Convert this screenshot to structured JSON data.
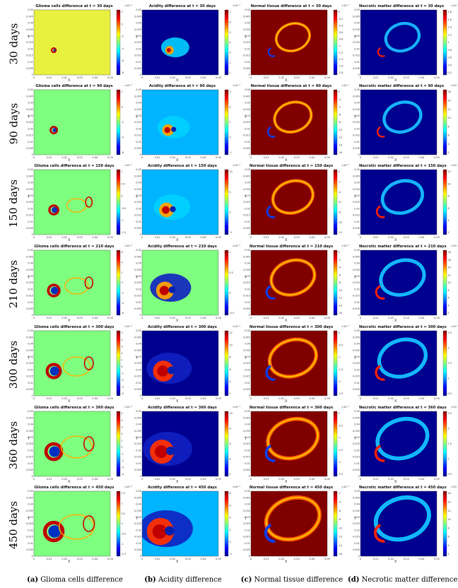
{
  "rows": [
    "30 days",
    "90 days",
    "150 days",
    "210 days",
    "300 days",
    "360 days",
    "450 days"
  ],
  "columns": [
    {
      "key": "glioma",
      "caption_tag": "(a)",
      "caption": "Glioma cells difference",
      "title_prefix": "Glioma cells difference at t = "
    },
    {
      "key": "acidity",
      "caption_tag": "(b)",
      "caption": "Acidity difference",
      "title_prefix": "Acidity difference at t = "
    },
    {
      "key": "normal",
      "caption_tag": "(c)",
      "caption": "Normal tissue difference",
      "title_prefix": "Normal tissue difference at t = "
    },
    {
      "key": "necrotic",
      "caption_tag": "(d)",
      "caption": "Necrotic matter difference",
      "title_prefix": "Necrotic matter difference at t = "
    }
  ],
  "chart_data": {
    "type": "heatmap",
    "grid": "4 columns x 7 rows of heatmap panels",
    "xlabel": "X",
    "ylabel": "Y",
    "xlim": [
      0,
      0.05
    ],
    "ylim": [
      0,
      0.05
    ],
    "x_ticks": [
      "0",
      "0.01",
      "0.02",
      "0.03",
      "0.04",
      "0.05"
    ],
    "y_ticks": [
      "0",
      "0.005",
      "0.01",
      "0.015",
      "0.02",
      "0.025",
      "0.03",
      "0.035",
      "0.04",
      "0.045",
      "0.05"
    ],
    "colormap": "jet",
    "colorbar_scale_label": "×10⁻³",
    "colors": {
      "low": "#00008f",
      "mid_low": "#00b4ff",
      "mid": "#7fff7f",
      "mid_high": "#ffd000",
      "high": "#800000"
    },
    "panels": [
      {
        "row": "30 days",
        "column": "Glioma cells difference",
        "title": "Glioma cells difference at t = 30 days",
        "colorbar_ticks": [
          "2",
          "0",
          "-2",
          "-4",
          "-6",
          "-8"
        ],
        "background": "high-mid"
      },
      {
        "row": "30 days",
        "column": "Acidity difference",
        "title": "Acidity difference at t = 30 days",
        "colorbar_ticks": [
          "7",
          "6",
          "5",
          "4",
          "3",
          "2",
          "1"
        ],
        "background": "low"
      },
      {
        "row": "30 days",
        "column": "Normal tissue difference",
        "title": "Normal tissue difference at t = 30 days",
        "colorbar_ticks": [
          "0",
          "-0.2",
          "-0.4",
          "-0.6",
          "-0.8",
          "-1",
          "-1.2",
          "-1.4",
          "-1.6",
          "-1.8"
        ],
        "background": "high"
      },
      {
        "row": "30 days",
        "column": "Necrotic matter difference",
        "title": "Necrotic matter difference at t = 30 days",
        "colorbar_ticks": [
          "1.8",
          "1.6",
          "1.4",
          "1.2",
          "1",
          "0.8",
          "0.6",
          "0.4",
          "0.2"
        ],
        "background": "low"
      },
      {
        "row": "90 days",
        "column": "Glioma cells difference",
        "title": "Glioma cells difference at t = 90 days",
        "colorbar_ticks": [
          "2",
          "0",
          "-2",
          "-4",
          "-6"
        ],
        "background": "mid"
      },
      {
        "row": "90 days",
        "column": "Acidity difference",
        "title": "Acidity difference at t = 90 days",
        "colorbar_ticks": [
          "3",
          "2",
          "1",
          "0",
          "-1"
        ],
        "background": "mid-low"
      },
      {
        "row": "90 days",
        "column": "Normal tissue difference",
        "title": "Normal tissue difference at t = 90 days",
        "colorbar_ticks": [
          "0",
          "-2",
          "-4",
          "-6",
          "-8",
          "-10",
          "-12",
          "-14",
          "-16"
        ],
        "background": "high"
      },
      {
        "row": "90 days",
        "column": "Necrotic matter difference",
        "title": "Necrotic matter difference at t = 90 days",
        "colorbar_ticks": [
          "16",
          "14",
          "12",
          "10",
          "8",
          "6",
          "4",
          "2"
        ],
        "background": "low"
      },
      {
        "row": "150 days",
        "column": "Glioma cells difference",
        "title": "Glioma cells difference at t = 150 days",
        "colorbar_ticks": [
          "1",
          "0.5",
          "0",
          "-0.5",
          "-1",
          "-1.5"
        ],
        "background": "mid"
      },
      {
        "row": "150 days",
        "column": "Acidity difference",
        "title": "Acidity difference at t = 150 days",
        "colorbar_ticks": [
          "10",
          "5",
          "0",
          "-5"
        ],
        "background": "mid-low"
      },
      {
        "row": "150 days",
        "column": "Normal tissue difference",
        "title": "Normal tissue difference at t = 150 days",
        "colorbar_ticks": [
          "0",
          "-2",
          "-4",
          "-6",
          "-8",
          "-10",
          "-12"
        ],
        "background": "high"
      },
      {
        "row": "150 days",
        "column": "Necrotic matter difference",
        "title": "Necrotic matter difference at t = 150 days",
        "colorbar_ticks": [
          "12",
          "10",
          "8",
          "6",
          "4",
          "2"
        ],
        "background": "low"
      },
      {
        "row": "210 days",
        "column": "Glioma cells difference",
        "title": "Glioma cells difference at t = 210 days",
        "colorbar_ticks": [
          "6",
          "4",
          "2",
          "0",
          "-2",
          "-4",
          "-6"
        ],
        "background": "mid"
      },
      {
        "row": "210 days",
        "column": "Acidity difference",
        "title": "Acidity difference at t = 210 days",
        "colorbar_ticks": [
          "1",
          "0.5",
          "0",
          "-0.5"
        ],
        "background": "mid"
      },
      {
        "row": "210 days",
        "column": "Normal tissue difference",
        "title": "Normal tissue difference at t = 210 days",
        "colorbar_ticks": [
          "0",
          "-2",
          "-4",
          "-6",
          "-8",
          "-10",
          "-12",
          "-14",
          "-16"
        ],
        "background": "high"
      },
      {
        "row": "210 days",
        "column": "Necrotic matter difference",
        "title": "Necrotic matter difference at t = 210 days",
        "colorbar_ticks": [
          "18",
          "16",
          "14",
          "12",
          "10",
          "8",
          "6",
          "4",
          "2"
        ],
        "background": "low"
      },
      {
        "row": "300 days",
        "column": "Glioma cells difference",
        "title": "Glioma cells difference at t = 300 days",
        "colorbar_ticks": [
          "5",
          "4",
          "3",
          "2",
          "1",
          "0",
          "-1",
          "-2",
          "-3",
          "-4"
        ],
        "background": "mid"
      },
      {
        "row": "300 days",
        "column": "Acidity difference",
        "title": "Acidity difference at t = 300 days",
        "colorbar_ticks": [
          "12",
          "10",
          "8",
          "6",
          "4",
          "2"
        ],
        "background": "low"
      },
      {
        "row": "300 days",
        "column": "Normal tissue difference",
        "title": "Normal tissue difference at t = 300 days",
        "colorbar_ticks": [
          "0",
          "-0.5",
          "-1",
          "-1.5",
          "-2",
          "-2.5"
        ],
        "background": "high"
      },
      {
        "row": "300 days",
        "column": "Necrotic matter difference",
        "title": "Necrotic matter difference at t = 300 days",
        "colorbar_ticks": [
          "2.5",
          "2",
          "1.5",
          "1",
          "0.5"
        ],
        "background": "low"
      },
      {
        "row": "360 days",
        "column": "Glioma cells difference",
        "title": "Glioma cells difference at t = 360 days",
        "colorbar_ticks": [
          "5",
          "4",
          "3",
          "2",
          "1",
          "0",
          "-1",
          "-2",
          "-3",
          "-4"
        ],
        "background": "mid"
      },
      {
        "row": "360 days",
        "column": "Acidity difference",
        "title": "Acidity difference at t = 360 days",
        "colorbar_ticks": [
          "10",
          "8",
          "6",
          "4",
          "2"
        ],
        "background": "low"
      },
      {
        "row": "360 days",
        "column": "Normal tissue difference",
        "title": "Normal tissue difference at t = 360 days",
        "colorbar_ticks": [
          "0",
          "-0.5",
          "-1",
          "-1.5",
          "-2",
          "-2.5"
        ],
        "background": "high"
      },
      {
        "row": "360 days",
        "column": "Necrotic matter difference",
        "title": "Necrotic matter difference at t = 360 days",
        "colorbar_ticks": [
          "2.5",
          "2",
          "1.5",
          "1",
          "0.5"
        ],
        "background": "low"
      },
      {
        "row": "450 days",
        "column": "Glioma cells difference",
        "title": "Glioma cells difference at t = 450 days",
        "colorbar_ticks": [
          "1.5",
          "1",
          "0.5",
          "0",
          "-0.5",
          "-1",
          "-1.5"
        ],
        "background": "mid"
      },
      {
        "row": "450 days",
        "column": "Acidity difference",
        "title": "Acidity difference at t = 450 days",
        "colorbar_ticks": [
          "8",
          "6",
          "4",
          "2",
          "0",
          "-2"
        ],
        "background": "mid-low"
      },
      {
        "row": "450 days",
        "column": "Normal tissue difference",
        "title": "Normal tissue difference at t = 450 days",
        "colorbar_ticks": [
          "-2",
          "-4",
          "-6",
          "-8",
          "-10",
          "-12",
          "-14",
          "-16"
        ],
        "background": "high"
      },
      {
        "row": "450 days",
        "column": "Necrotic matter difference",
        "title": "Necrotic matter difference at t = 450 days",
        "colorbar_ticks": [
          "16",
          "14",
          "12",
          "10",
          "8",
          "6",
          "4",
          "2"
        ],
        "background": "low"
      }
    ]
  }
}
